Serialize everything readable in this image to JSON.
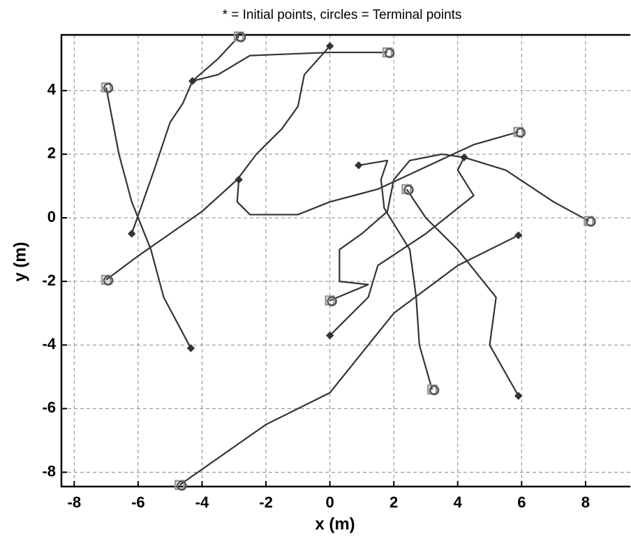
{
  "chart_data": {
    "type": "line",
    "title": "* = Initial points, circles = Terminal points",
    "xlabel": "x (m)",
    "ylabel": "y (m)",
    "xlim": [
      -8.4,
      9.4
    ],
    "ylim": [
      -8.45,
      5.75
    ],
    "xticks": [
      -8,
      -6,
      -4,
      -2,
      0,
      2,
      4,
      6,
      8
    ],
    "yticks": [
      -8,
      -6,
      -4,
      -2,
      0,
      2,
      4
    ],
    "grid": true,
    "series": [
      {
        "color": "#333333",
        "x": [
          -4.35,
          -5.2,
          -5.6,
          -6.2,
          -6.6,
          -7
        ],
        "values": [
          -4.1,
          -2.5,
          -1,
          0.5,
          2,
          4.1
        ]
      },
      {
        "color": "#333333",
        "x": [
          -6.2,
          -5.5,
          -5,
          -4.6,
          -4.3,
          -3.5,
          -2.85
        ],
        "values": [
          -0.5,
          1.5,
          3,
          3.6,
          4.3,
          5,
          5.7
        ]
      },
      {
        "color": "#333333",
        "x": [
          0,
          -0.8,
          -1,
          -1.5,
          -2.3,
          -2.9,
          -4,
          -5,
          -6,
          -7
        ],
        "values": [
          5.4,
          4.5,
          3.5,
          2.8,
          2,
          1.2,
          0.2,
          -0.5,
          -1.2,
          -1.95
        ]
      },
      {
        "color": "#333333",
        "x": [
          -4.3,
          -3.5,
          -2.5,
          0,
          1.8
        ],
        "values": [
          4.3,
          4.5,
          5.1,
          5.2,
          5.2
        ]
      },
      {
        "color": "#333333",
        "x": [
          -2.85,
          -2.9,
          -2.5,
          -1,
          0,
          1.5,
          3,
          4.5,
          5.9
        ],
        "values": [
          1.2,
          0.5,
          0.1,
          0.1,
          0.5,
          0.9,
          1.6,
          2.3,
          2.7
        ]
      },
      {
        "color": "#333333",
        "x": [
          0.9,
          1.8,
          1.6,
          1.7,
          2.5,
          2.7,
          2.8,
          3.2
        ],
        "values": [
          1.65,
          1.8,
          1.2,
          0.3,
          -1,
          -2.5,
          -4,
          -5.4
        ]
      },
      {
        "color": "#333333",
        "x": [
          4.2,
          3.5,
          2.5,
          2,
          1.8,
          1,
          0.3,
          0.3,
          1.2,
          0
        ],
        "values": [
          1.9,
          2,
          1.8,
          1.2,
          0.2,
          -0.5,
          -1,
          -2,
          -2.1,
          -2.6
        ]
      },
      {
        "color": "#333333",
        "x": [
          0,
          1.2,
          1.5,
          3,
          4.5,
          4,
          4.2,
          5.5,
          7,
          8.1
        ],
        "values": [
          -3.7,
          -2.5,
          -1.5,
          -0.5,
          0.7,
          1.5,
          1.9,
          1.5,
          0.5,
          -0.1
        ]
      },
      {
        "color": "#333333",
        "x": [
          5.9,
          5,
          5.2,
          4,
          3,
          2.4
        ],
        "values": [
          -5.6,
          -4,
          -2.5,
          -1,
          0,
          0.9
        ]
      },
      {
        "color": "#333333",
        "x": [
          5.9,
          4,
          2,
          0,
          -2,
          -4.7
        ],
        "values": [
          -0.55,
          -1.5,
          -3,
          -5.5,
          -6.5,
          -8.4
        ]
      }
    ]
  }
}
